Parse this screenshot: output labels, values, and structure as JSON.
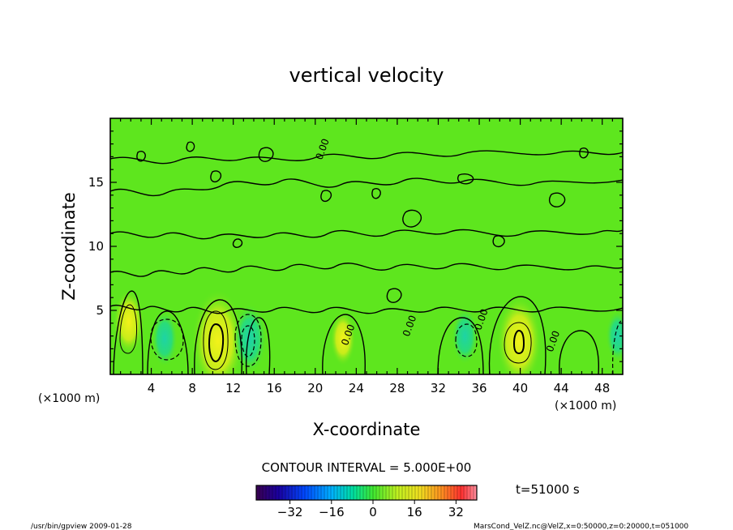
{
  "chart_data": {
    "type": "contour",
    "title": "vertical velocity",
    "xlabel": "X-coordinate",
    "ylabel": "Z-coordinate",
    "x_unit_left": "(×1000 m)",
    "x_unit_right": "(×1000 m)",
    "xlim": [
      0,
      50
    ],
    "ylim": [
      0,
      20
    ],
    "x_ticks": [
      4,
      8,
      12,
      16,
      20,
      24,
      28,
      32,
      36,
      40,
      44,
      48
    ],
    "y_ticks": [
      5,
      10,
      15
    ],
    "contour_interval_text": "CONTOUR INTERVAL = 5.000E+00",
    "contour_labels": [
      {
        "x": 23.5,
        "z": 3.0,
        "text": "0.00"
      },
      {
        "x": 29.5,
        "z": 3.7,
        "text": "0.00"
      },
      {
        "x": 36.5,
        "z": 4.2,
        "text": "0.00"
      },
      {
        "x": 43.5,
        "z": 2.5,
        "text": "0.00"
      },
      {
        "x": 21.0,
        "z": 17.5,
        "text": "0.00"
      }
    ],
    "features": [
      {
        "x": 10.5,
        "z": 2.6,
        "w": 25,
        "kind": "updraft"
      },
      {
        "x": 39.9,
        "z": 2.6,
        "w": 20,
        "kind": "updraft"
      },
      {
        "x": 1.8,
        "z": 4.1,
        "w": 10,
        "kind": "updraft"
      },
      {
        "x": 22.7,
        "z": 2.8,
        "w": 6,
        "kind": "updraft"
      },
      {
        "x": 13.6,
        "z": 2.8,
        "w": -12,
        "kind": "downdraft"
      },
      {
        "x": 5.3,
        "z": 2.8,
        "w": -7,
        "kind": "downdraft"
      },
      {
        "x": 34.6,
        "z": 3.0,
        "w": -7,
        "kind": "downdraft"
      },
      {
        "x": 49.5,
        "z": 3.0,
        "w": -5,
        "kind": "downdraft"
      }
    ],
    "colorbar": {
      "ticks": [
        -32,
        -16,
        0,
        16,
        32
      ],
      "min": -45,
      "max": 40
    },
    "time_label": "t=51000 s"
  },
  "footer": {
    "left": "/usr/bin/gpview   2009-01-28",
    "right": "MarsCond_VelZ.nc@VelZ,x=0:50000,z=0:20000,t=051000"
  }
}
